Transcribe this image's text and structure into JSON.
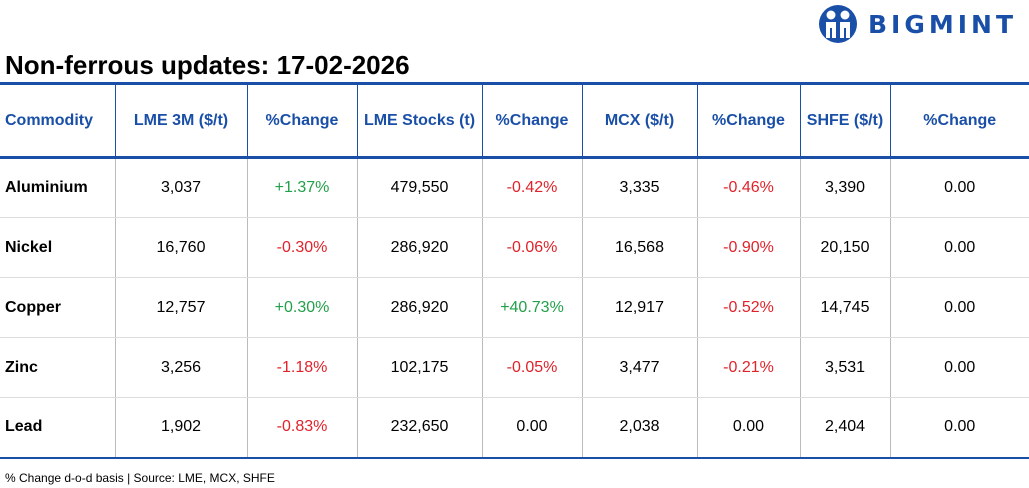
{
  "brand": {
    "name": "BIGMINT",
    "color": "#1a4fa8"
  },
  "title": "Non-ferrous updates: 17-02-2026",
  "headers": [
    "Commodity",
    "LME 3M ($/t)",
    "%Change",
    "LME Stocks (t)",
    "%Change",
    "MCX ($/t)",
    "%Change",
    "SHFE ($/t)",
    "%Change"
  ],
  "rows": [
    [
      "Aluminium",
      "3,037",
      "+1.37%",
      "479,550",
      "-0.42%",
      "3,335",
      "-0.46%",
      "3,390",
      "0.00"
    ],
    [
      "Nickel",
      "16,760",
      "-0.30%",
      "286,920",
      "-0.06%",
      "16,568",
      "-0.90%",
      "20,150",
      "0.00"
    ],
    [
      "Copper",
      "12,757",
      "+0.30%",
      "286,920",
      "+40.73%",
      "12,917",
      "-0.52%",
      "14,745",
      "0.00"
    ],
    [
      "Zinc",
      "3,256",
      "-1.18%",
      "102,175",
      "-0.05%",
      "3,477",
      "-0.21%",
      "3,531",
      "0.00"
    ],
    [
      "Lead",
      "1,902",
      "-0.83%",
      "232,650",
      "0.00",
      "2,038",
      "0.00",
      "2,404",
      "0.00"
    ]
  ],
  "colors": {
    "positive": "#22a04a",
    "negative": "#e0222a",
    "header": "#1a4fa8"
  },
  "footnote": "% Change d-o-d basis | Source: LME, MCX, SHFE"
}
